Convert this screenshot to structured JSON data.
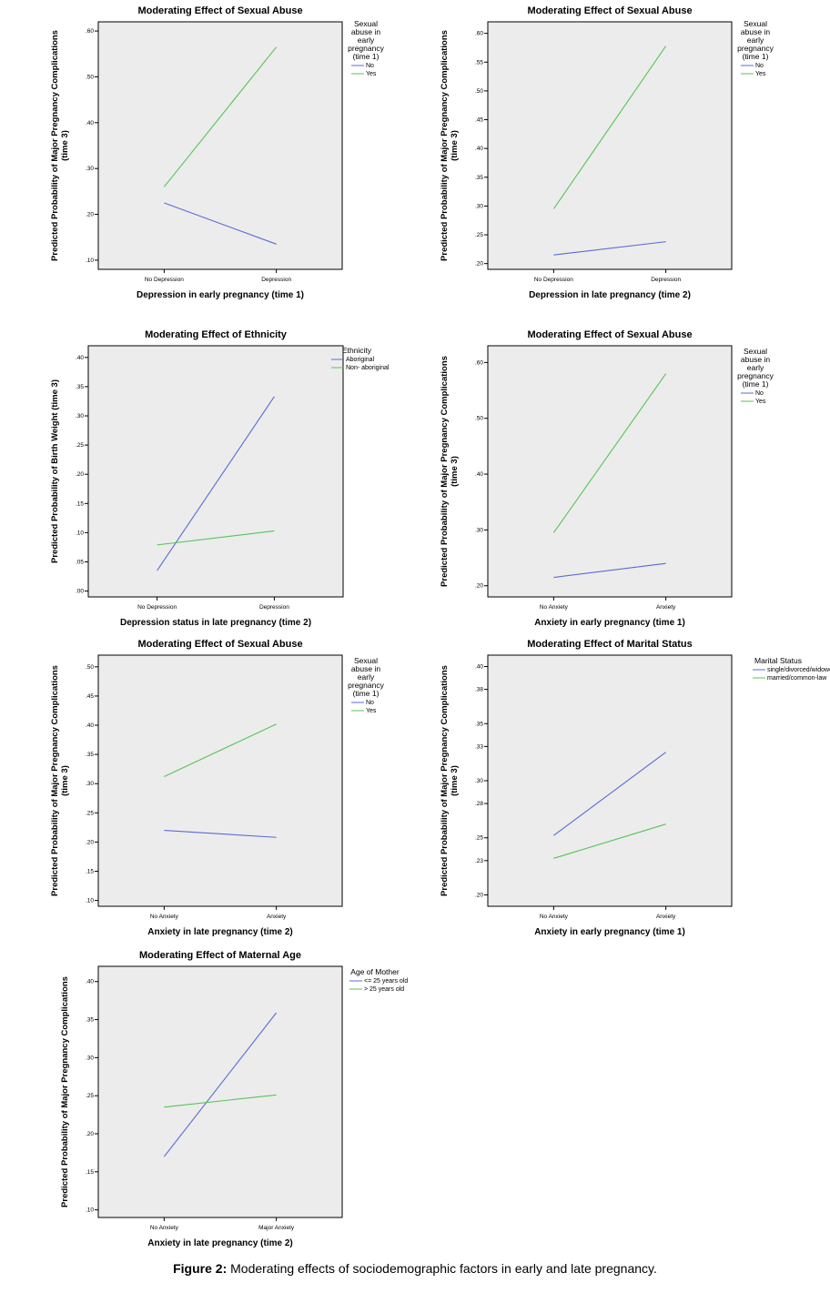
{
  "figure": {
    "caption_label": "Figure 2:",
    "caption_text": "Moderating effects of sociodemographic factors in early and late pregnancy."
  },
  "colors": {
    "series1": "#5a6bd6",
    "series2": "#56c456"
  },
  "chart_data": [
    {
      "type": "line",
      "title": "Moderating Effect of Sexual Abuse",
      "xlabel": "Depression in early pregnancy (time 1)",
      "ylabel": [
        "Predicted Probability of Major Pregnancy Complications",
        "(time 3)"
      ],
      "categories": [
        "No Depression",
        "Depression"
      ],
      "yticks": [
        ".10",
        ".20",
        ".30",
        ".40",
        ".50",
        ".60"
      ],
      "ylim": [
        0.08,
        0.62
      ],
      "legend_title": [
        "Sexual",
        "abuse in",
        "early",
        "pregnancy",
        "(time 1)"
      ],
      "series": [
        {
          "name": "No",
          "values": [
            0.225,
            0.135
          ]
        },
        {
          "name": "Yes",
          "values": [
            0.26,
            0.565
          ]
        }
      ]
    },
    {
      "type": "line",
      "title": "Moderating Effect of Sexual Abuse",
      "xlabel": "Depression in late pregnancy (time 2)",
      "ylabel": [
        "Predicted Probability of Major Pregnancy Complications",
        "(time 3)"
      ],
      "categories": [
        "No Depression",
        "Depression"
      ],
      "yticks": [
        ".20",
        ".25",
        ".30",
        ".35",
        ".40",
        ".45",
        ".50",
        ".55",
        ".60"
      ],
      "ylim": [
        0.19,
        0.62
      ],
      "legend_title": [
        "Sexual",
        "abuse in",
        "early",
        "pregnancy",
        "(time 1)"
      ],
      "series": [
        {
          "name": "No",
          "values": [
            0.215,
            0.238
          ]
        },
        {
          "name": "Yes",
          "values": [
            0.295,
            0.578
          ]
        }
      ]
    },
    {
      "type": "line",
      "title": "Moderating Effect of Ethnicity",
      "xlabel": "Depression status in late pregnancy (time 2)",
      "ylabel": [
        "Predicted Probability of Birth Weight (time 3)"
      ],
      "categories": [
        "No Depression",
        "Depression"
      ],
      "yticks": [
        ".00",
        ".05",
        ".10",
        ".15",
        ".20",
        ".25",
        ".30",
        ".35",
        ".40"
      ],
      "ylim": [
        -0.01,
        0.42
      ],
      "legend_title": [
        "Ethnicity"
      ],
      "series": [
        {
          "name": "Aboriginal",
          "values": [
            0.035,
            0.333
          ]
        },
        {
          "name": "Non- aboriginal",
          "values": [
            0.079,
            0.103
          ]
        }
      ]
    },
    {
      "type": "line",
      "title": "Moderating Effect of Sexual Abuse",
      "xlabel": "Anxiety in early pregnancy (time 1)",
      "ylabel": [
        "Predicted Probability of Major Pregnancy Complications",
        "(time 3)"
      ],
      "categories": [
        "No Anxiety",
        "Anxiety"
      ],
      "yticks": [
        ".20",
        ".30",
        ".40",
        ".50",
        ".60"
      ],
      "ylim": [
        0.18,
        0.63
      ],
      "legend_title": [
        "Sexual",
        "abuse in",
        "early",
        "pregnancy",
        "(time 1)"
      ],
      "series": [
        {
          "name": "No",
          "values": [
            0.215,
            0.24
          ]
        },
        {
          "name": "Yes",
          "values": [
            0.295,
            0.58
          ]
        }
      ]
    },
    {
      "type": "line",
      "title": "Moderating Effect of Sexual Abuse",
      "xlabel": "Anxiety in late pregnancy (time 2)",
      "ylabel": [
        "Predicted Probability of Major Pregnancy Complications",
        "(time 3)"
      ],
      "categories": [
        "No Anxiety",
        "Anxiety"
      ],
      "yticks": [
        ".10",
        ".15",
        ".20",
        ".25",
        ".30",
        ".35",
        ".40",
        ".45",
        ".50"
      ],
      "ylim": [
        0.09,
        0.52
      ],
      "legend_title": [
        "Sexual",
        "abuse in",
        "early",
        "pregnancy",
        "(time 1)"
      ],
      "series": [
        {
          "name": "No",
          "values": [
            0.22,
            0.208
          ]
        },
        {
          "name": "Yes",
          "values": [
            0.312,
            0.402
          ]
        }
      ]
    },
    {
      "type": "line",
      "title": "Moderating Effect of Marital Status",
      "xlabel": "Anxiety in early pregnancy (time 1)",
      "ylabel": [
        "Predicted Probability of Major Pregnancy Complications",
        "(time 3)"
      ],
      "categories": [
        "No Anxiety",
        "Anxiety"
      ],
      "yticks": [
        ".20",
        ".23",
        ".25",
        ".28",
        ".30",
        ".33",
        ".35",
        ".38",
        ".40"
      ],
      "ylim": [
        0.19,
        0.41
      ],
      "legend_title": [
        "Marital Status"
      ],
      "series": [
        {
          "name": "single/divorced/widowed",
          "values": [
            0.252,
            0.325
          ]
        },
        {
          "name": "married/common-law",
          "values": [
            0.232,
            0.262
          ]
        }
      ]
    },
    {
      "type": "line",
      "title": "Moderating Effect of Maternal Age",
      "xlabel": "Anxiety in late pregnancy (time 2)",
      "ylabel": [
        "Predicted Probability of Major Pregnancy Complications"
      ],
      "categories": [
        "No Anxiety",
        "Major Anxiety"
      ],
      "yticks": [
        ".10",
        ".15",
        ".20",
        ".25",
        ".30",
        ".35",
        ".40"
      ],
      "ylim": [
        0.09,
        0.42
      ],
      "legend_title": [
        "Age of Mother"
      ],
      "series": [
        {
          "name": "<= 25 years old",
          "values": [
            0.17,
            0.359
          ]
        },
        {
          "name": "> 25 years old",
          "values": [
            0.235,
            0.251
          ]
        }
      ]
    }
  ]
}
